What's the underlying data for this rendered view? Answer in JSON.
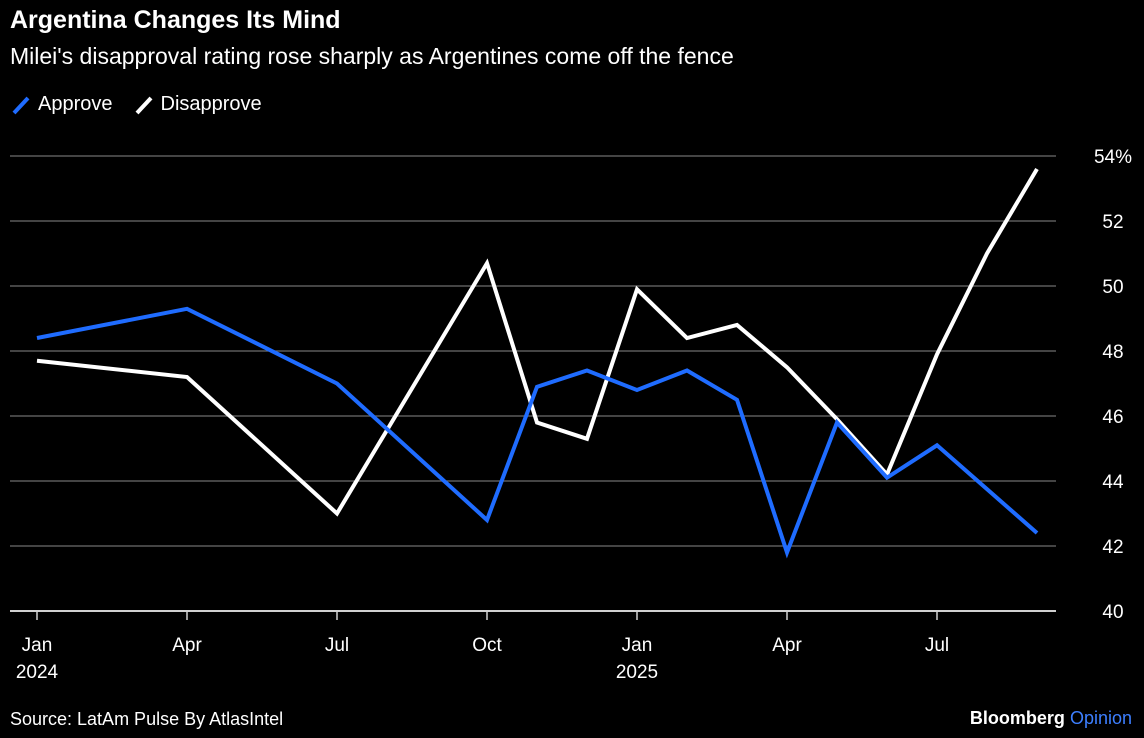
{
  "chart_data": {
    "type": "line",
    "title": "Argentina Changes Its Mind",
    "subtitle": "Milei's disapproval rating rose sharply as Argentines come off the fence",
    "xlabel": "",
    "ylabel": "",
    "ylim": [
      40,
      54
    ],
    "yticks": [
      40,
      42,
      44,
      46,
      48,
      50,
      52,
      54
    ],
    "ytick_labels": [
      "40",
      "42",
      "44",
      "46",
      "48",
      "50",
      "52",
      "54%"
    ],
    "xlim": [
      0,
      21
    ],
    "xticks": [
      {
        "pos": 0,
        "label": "Jan",
        "sub": "2024"
      },
      {
        "pos": 3,
        "label": "Apr",
        "sub": ""
      },
      {
        "pos": 6,
        "label": "Jul",
        "sub": ""
      },
      {
        "pos": 9,
        "label": "Oct",
        "sub": ""
      },
      {
        "pos": 12,
        "label": "Jan",
        "sub": "2025"
      },
      {
        "pos": 15,
        "label": "Apr",
        "sub": ""
      },
      {
        "pos": 18,
        "label": "Jul",
        "sub": ""
      }
    ],
    "legend_position": "top-left",
    "series": [
      {
        "name": "Approve",
        "color": "#1f6cff",
        "x": [
          0,
          3,
          6,
          9,
          10,
          11,
          12,
          13,
          14,
          15,
          16,
          17,
          18,
          20
        ],
        "values": [
          48.4,
          49.3,
          47.0,
          42.8,
          46.9,
          47.4,
          46.8,
          47.4,
          46.5,
          41.8,
          45.8,
          44.1,
          45.1,
          42.4
        ]
      },
      {
        "name": "Disapprove",
        "color": "#ffffff",
        "x": [
          0,
          3,
          6,
          9,
          10,
          11,
          12,
          13,
          14,
          15,
          16,
          17,
          18,
          19,
          20
        ],
        "values": [
          47.7,
          47.2,
          43.0,
          50.7,
          45.8,
          45.3,
          49.9,
          48.4,
          48.8,
          47.5,
          45.9,
          44.2,
          47.9,
          51.0,
          53.6
        ]
      }
    ]
  },
  "footer": {
    "source": "Source: LatAm Pulse By AtlasIntel",
    "brand_name": "Bloomberg",
    "brand_suffix": "Opinion"
  }
}
